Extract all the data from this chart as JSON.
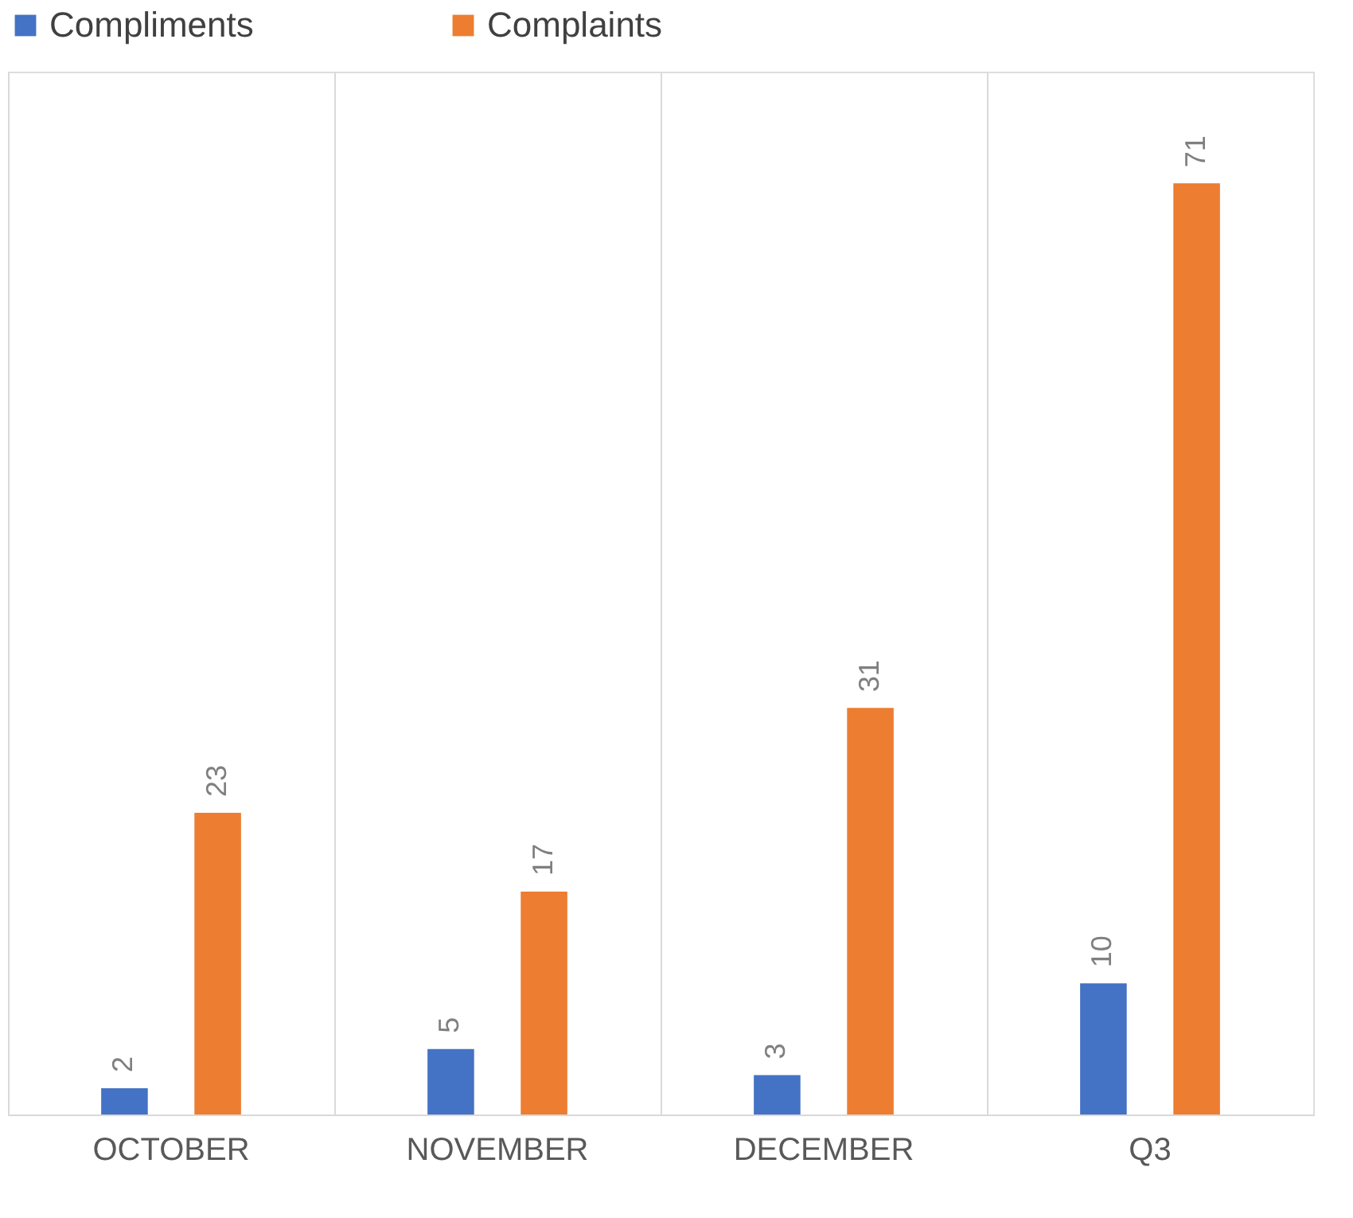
{
  "chart_data": {
    "type": "bar",
    "categories": [
      "OCTOBER",
      "NOVEMBER",
      "DECEMBER",
      "Q3"
    ],
    "series": [
      {
        "name": "Compliments",
        "color": "#4472c4",
        "values": [
          2,
          5,
          3,
          10
        ]
      },
      {
        "name": "Complaints",
        "color": "#ed7d31",
        "values": [
          23,
          17,
          31,
          71
        ]
      }
    ],
    "data_labels": true,
    "grid": "x",
    "legend": "top"
  }
}
